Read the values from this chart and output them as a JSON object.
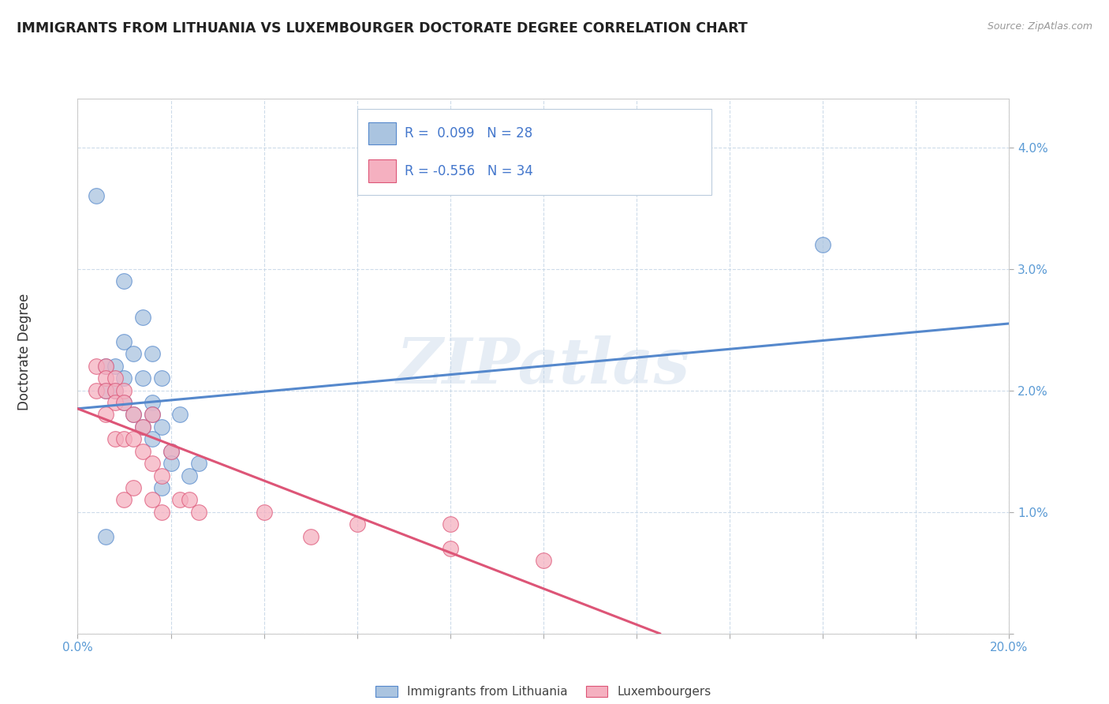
{
  "title": "IMMIGRANTS FROM LITHUANIA VS LUXEMBOURGER DOCTORATE DEGREE CORRELATION CHART",
  "source": "Source: ZipAtlas.com",
  "ylabel": "Doctorate Degree",
  "watermark": "ZIPatlas",
  "legend_blue_r": "R =  0.099",
  "legend_blue_n": "N = 28",
  "legend_pink_r": "R = -0.556",
  "legend_pink_n": "N = 34",
  "xlim": [
    0.0,
    0.2
  ],
  "ylim": [
    0.0,
    0.044
  ],
  "xticks": [
    0.0,
    0.02,
    0.04,
    0.06,
    0.08,
    0.1,
    0.12,
    0.14,
    0.16,
    0.18,
    0.2
  ],
  "yticks": [
    0.0,
    0.01,
    0.02,
    0.03,
    0.04
  ],
  "ytick_labels": [
    "",
    "1.0%",
    "2.0%",
    "3.0%",
    "4.0%"
  ],
  "xtick_labels": [
    "0.0%",
    "",
    "",
    "",
    "",
    "",
    "",
    "",
    "",
    "",
    "20.0%"
  ],
  "blue_color": "#aac4e0",
  "pink_color": "#f5b0c0",
  "blue_line_color": "#5588cc",
  "pink_line_color": "#dd5577",
  "blue_scatter": [
    [
      0.004,
      0.036
    ],
    [
      0.01,
      0.029
    ],
    [
      0.014,
      0.026
    ],
    [
      0.01,
      0.024
    ],
    [
      0.012,
      0.023
    ],
    [
      0.016,
      0.023
    ],
    [
      0.006,
      0.022
    ],
    [
      0.008,
      0.022
    ],
    [
      0.014,
      0.021
    ],
    [
      0.01,
      0.021
    ],
    [
      0.018,
      0.021
    ],
    [
      0.006,
      0.02
    ],
    [
      0.008,
      0.02
    ],
    [
      0.01,
      0.019
    ],
    [
      0.016,
      0.019
    ],
    [
      0.012,
      0.018
    ],
    [
      0.016,
      0.018
    ],
    [
      0.022,
      0.018
    ],
    [
      0.014,
      0.017
    ],
    [
      0.018,
      0.017
    ],
    [
      0.016,
      0.016
    ],
    [
      0.02,
      0.015
    ],
    [
      0.02,
      0.014
    ],
    [
      0.026,
      0.014
    ],
    [
      0.024,
      0.013
    ],
    [
      0.018,
      0.012
    ],
    [
      0.006,
      0.008
    ],
    [
      0.16,
      0.032
    ]
  ],
  "pink_scatter": [
    [
      0.004,
      0.022
    ],
    [
      0.006,
      0.022
    ],
    [
      0.006,
      0.021
    ],
    [
      0.008,
      0.021
    ],
    [
      0.004,
      0.02
    ],
    [
      0.006,
      0.02
    ],
    [
      0.008,
      0.02
    ],
    [
      0.01,
      0.02
    ],
    [
      0.008,
      0.019
    ],
    [
      0.01,
      0.019
    ],
    [
      0.006,
      0.018
    ],
    [
      0.012,
      0.018
    ],
    [
      0.016,
      0.018
    ],
    [
      0.014,
      0.017
    ],
    [
      0.008,
      0.016
    ],
    [
      0.01,
      0.016
    ],
    [
      0.012,
      0.016
    ],
    [
      0.014,
      0.015
    ],
    [
      0.02,
      0.015
    ],
    [
      0.016,
      0.014
    ],
    [
      0.018,
      0.013
    ],
    [
      0.012,
      0.012
    ],
    [
      0.01,
      0.011
    ],
    [
      0.016,
      0.011
    ],
    [
      0.022,
      0.011
    ],
    [
      0.024,
      0.011
    ],
    [
      0.018,
      0.01
    ],
    [
      0.026,
      0.01
    ],
    [
      0.04,
      0.01
    ],
    [
      0.06,
      0.009
    ],
    [
      0.05,
      0.008
    ],
    [
      0.08,
      0.009
    ],
    [
      0.08,
      0.007
    ],
    [
      0.1,
      0.006
    ]
  ],
  "blue_trend_x": [
    0.0,
    0.2
  ],
  "blue_trend_y": [
    0.0185,
    0.0255
  ],
  "pink_trend_x": [
    0.0,
    0.125
  ],
  "pink_trend_y": [
    0.0185,
    0.0
  ]
}
